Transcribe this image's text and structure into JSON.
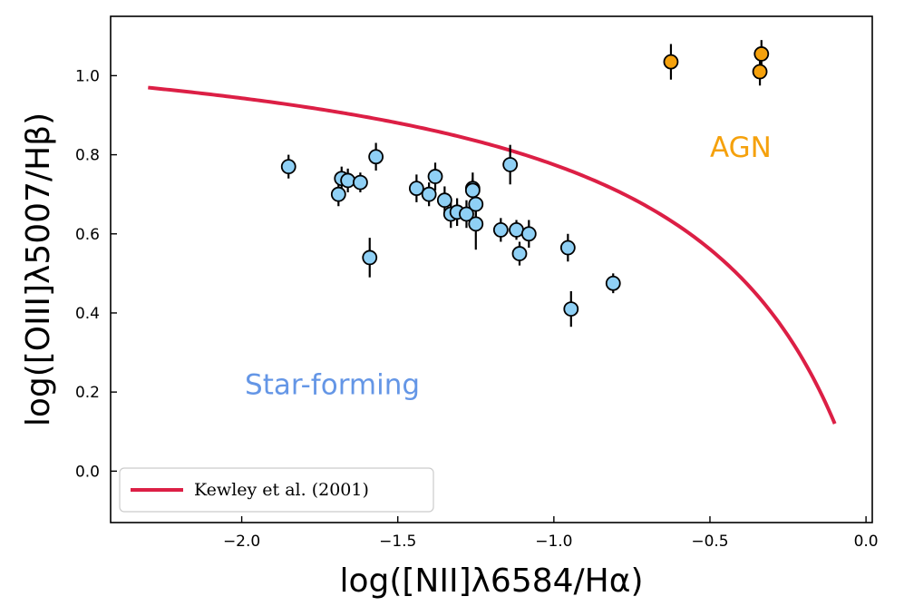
{
  "chart_data": {
    "type": "scatter",
    "xlabel": "log([NII]λ6584/Hα)",
    "ylabel": "log([OIII]λ5007/Hβ)",
    "xlim": [
      -2.42,
      0.02
    ],
    "ylim": [
      -0.13,
      1.15
    ],
    "x_ticks": [
      -2.0,
      -1.5,
      -1.0,
      -0.5,
      0.0
    ],
    "x_tick_labels": [
      "−2.0",
      "−1.5",
      "−1.0",
      "−0.5",
      "0.0"
    ],
    "y_ticks": [
      0.0,
      0.2,
      0.4,
      0.6,
      0.8,
      1.0
    ],
    "y_tick_labels": [
      "0.0",
      "0.2",
      "0.4",
      "0.6",
      "0.8",
      "1.0"
    ],
    "grid": false,
    "colors": {
      "star_forming": "#8fd0f5",
      "agn": "#f5a10c",
      "curve": "#dc1f45",
      "sf_label": "#6496e6",
      "agn_label": "#f5a10c"
    },
    "curve": {
      "name": "Kewley et al. (2001)",
      "equation": "y = 0.61/(x - 0.47) + 1.19",
      "x_range": [
        -2.3,
        -0.1
      ]
    },
    "series": [
      {
        "name": "Star-forming",
        "points": [
          {
            "x": -1.85,
            "y": 0.77,
            "yerr": 0.03
          },
          {
            "x": -1.69,
            "y": 0.7,
            "yerr": 0.03
          },
          {
            "x": -1.68,
            "y": 0.74,
            "yerr": 0.03
          },
          {
            "x": -1.66,
            "y": 0.735,
            "yerr": 0.03
          },
          {
            "x": -1.62,
            "y": 0.73,
            "yerr": 0.025
          },
          {
            "x": -1.59,
            "y": 0.54,
            "yerr": 0.05
          },
          {
            "x": -1.57,
            "y": 0.795,
            "yerr": 0.035
          },
          {
            "x": -1.44,
            "y": 0.715,
            "yerr": 0.035
          },
          {
            "x": -1.4,
            "y": 0.7,
            "yerr": 0.03
          },
          {
            "x": -1.38,
            "y": 0.745,
            "yerr": 0.035
          },
          {
            "x": -1.35,
            "y": 0.685,
            "yerr": 0.035
          },
          {
            "x": -1.33,
            "y": 0.65,
            "yerr": 0.035
          },
          {
            "x": -1.31,
            "y": 0.655,
            "yerr": 0.035
          },
          {
            "x": -1.28,
            "y": 0.65,
            "yerr": 0.035
          },
          {
            "x": -1.26,
            "y": 0.715,
            "yerr": 0.04
          },
          {
            "x": -1.26,
            "y": 0.71,
            "yerr": 0.03
          },
          {
            "x": -1.25,
            "y": 0.675,
            "yerr": 0.03
          },
          {
            "x": -1.25,
            "y": 0.625,
            "yerr": 0.065
          },
          {
            "x": -1.17,
            "y": 0.61,
            "yerr": 0.03
          },
          {
            "x": -1.14,
            "y": 0.775,
            "yerr": 0.05
          },
          {
            "x": -1.12,
            "y": 0.61,
            "yerr": 0.025
          },
          {
            "x": -1.11,
            "y": 0.55,
            "yerr": 0.03
          },
          {
            "x": -1.08,
            "y": 0.6,
            "yerr": 0.035
          },
          {
            "x": -0.955,
            "y": 0.565,
            "yerr": 0.035
          },
          {
            "x": -0.945,
            "y": 0.41,
            "yerr": 0.045
          },
          {
            "x": -0.81,
            "y": 0.475,
            "yerr": 0.025
          }
        ]
      },
      {
        "name": "AGN",
        "points": [
          {
            "x": -0.625,
            "y": 1.035,
            "yerr": 0.045
          },
          {
            "x": -0.335,
            "y": 1.055,
            "yerr": 0.035
          },
          {
            "x": -0.34,
            "y": 1.01,
            "yerr": 0.035
          }
        ]
      }
    ],
    "annotations": [
      {
        "text": "AGN",
        "x": -0.5,
        "y": 0.82,
        "color_key": "agn_label"
      },
      {
        "text": "Star-forming",
        "x": -1.99,
        "y": 0.22,
        "color_key": "sf_label"
      }
    ],
    "legend": {
      "location": "lower-left",
      "entries": [
        "Kewley et al. (2001)"
      ]
    }
  }
}
